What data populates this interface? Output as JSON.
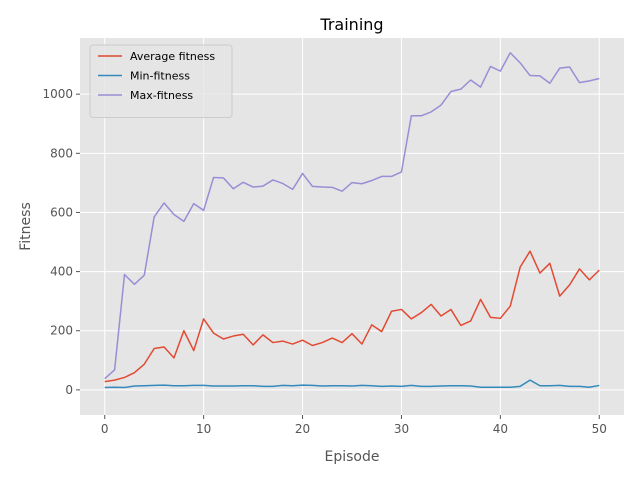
{
  "chart_data": {
    "type": "line",
    "title": "Training",
    "xlabel": "Episode",
    "ylabel": "Fitness",
    "xlim": [
      -2.5,
      52.5
    ],
    "ylim": [
      -85,
      1190
    ],
    "xticks": [
      0,
      10,
      20,
      30,
      40,
      50
    ],
    "yticks": [
      0,
      200,
      400,
      600,
      800,
      1000
    ],
    "grid": true,
    "legend_position": "top-left",
    "x": [
      0,
      1,
      2,
      3,
      4,
      5,
      6,
      7,
      8,
      9,
      10,
      11,
      12,
      13,
      14,
      15,
      16,
      17,
      18,
      19,
      20,
      21,
      22,
      23,
      24,
      25,
      26,
      27,
      28,
      29,
      30,
      31,
      32,
      33,
      34,
      35,
      36,
      37,
      38,
      39,
      40,
      41,
      42,
      43,
      44,
      45,
      46,
      47,
      48,
      49,
      50
    ],
    "series": [
      {
        "name": "Average fitness",
        "color": "#E24A33",
        "values": [
          28,
          33,
          42,
          58,
          87,
          140,
          145,
          108,
          200,
          133,
          240,
          192,
          172,
          182,
          188,
          152,
          186,
          160,
          165,
          155,
          168,
          150,
          160,
          175,
          160,
          190,
          155,
          220,
          197,
          266,
          272,
          240,
          261,
          289,
          250,
          272,
          218,
          233,
          306,
          245,
          242,
          283,
          415,
          469,
          395,
          428,
          317,
          355,
          409,
          372,
          405
        ]
      },
      {
        "name": "Min-fitness",
        "color": "#348ABD",
        "values": [
          8,
          9,
          8,
          13,
          14,
          15,
          16,
          14,
          14,
          15,
          15,
          13,
          13,
          13,
          14,
          14,
          12,
          12,
          15,
          14,
          16,
          15,
          13,
          14,
          14,
          13,
          15,
          14,
          12,
          13,
          12,
          15,
          12,
          12,
          13,
          14,
          14,
          13,
          9,
          9,
          9,
          9,
          12,
          33,
          14,
          14,
          15,
          12,
          12,
          9,
          15
        ]
      },
      {
        "name": "Max-fitness",
        "color": "#988ED5",
        "values": [
          38,
          68,
          390,
          357,
          388,
          585,
          632,
          593,
          570,
          630,
          607,
          718,
          717,
          680,
          702,
          686,
          689,
          710,
          698,
          678,
          732,
          688,
          686,
          685,
          672,
          701,
          697,
          708,
          722,
          722,
          737,
          927,
          927,
          940,
          963,
          1009,
          1017,
          1048,
          1024,
          1094,
          1078,
          1140,
          1106,
          1063,
          1062,
          1037,
          1088,
          1092,
          1039,
          1045,
          1053
        ]
      }
    ]
  }
}
